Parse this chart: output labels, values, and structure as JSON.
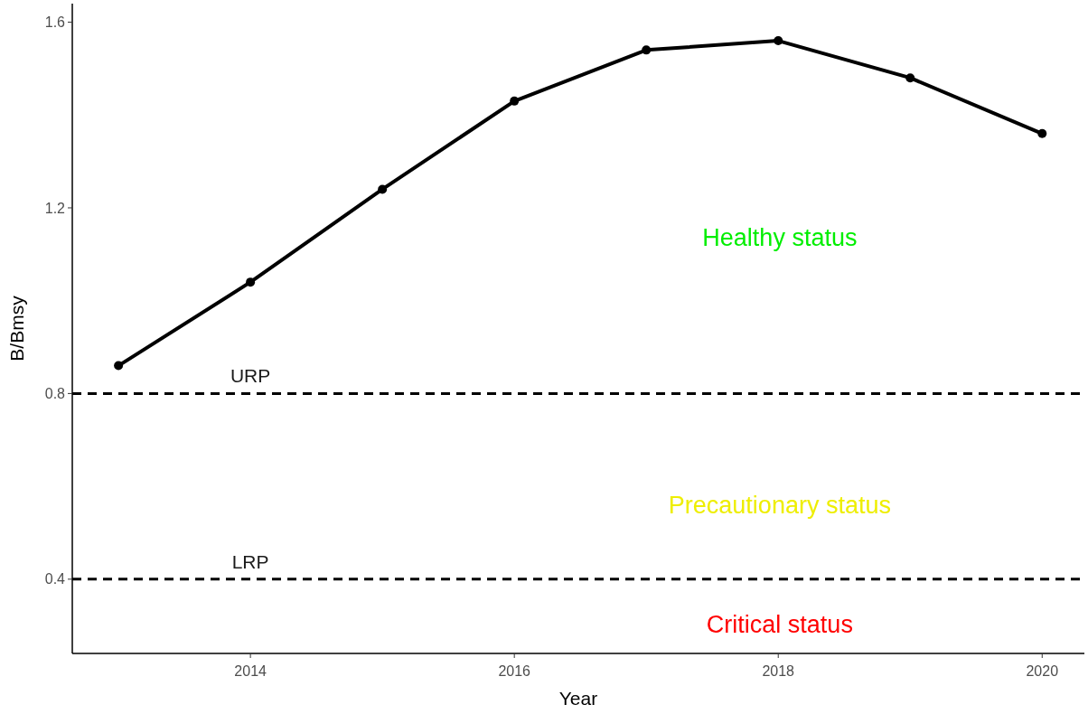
{
  "chart_data": {
    "type": "line",
    "xlabel": "Year",
    "ylabel": "B/Bmsy",
    "x": [
      2013,
      2014,
      2015,
      2016,
      2017,
      2018,
      2019,
      2020
    ],
    "series": [
      {
        "color": "#000000",
        "values": [
          0.86,
          1.04,
          1.24,
          1.43,
          1.54,
          1.56,
          1.48,
          1.36
        ]
      }
    ],
    "xlim": [
      2012.65,
      2020.32
    ],
    "xticks": [
      2014,
      2016,
      2018,
      2020
    ],
    "ylim": [
      0.24,
      1.64
    ],
    "yticks": [
      0.4,
      0.8,
      1.2,
      1.6
    ],
    "ref_lines": [
      {
        "axis": "y",
        "value": 0.8,
        "label": "URP",
        "line_style": "dashed",
        "color": "#000000"
      },
      {
        "axis": "y",
        "value": 0.4,
        "label": "LRP",
        "line_style": "dashed",
        "color": "#000000"
      }
    ],
    "annotations": [
      "Healthy status",
      "Precautionary status",
      "Critical status"
    ],
    "marker": "circle",
    "line_style": "solid",
    "grid": false
  }
}
